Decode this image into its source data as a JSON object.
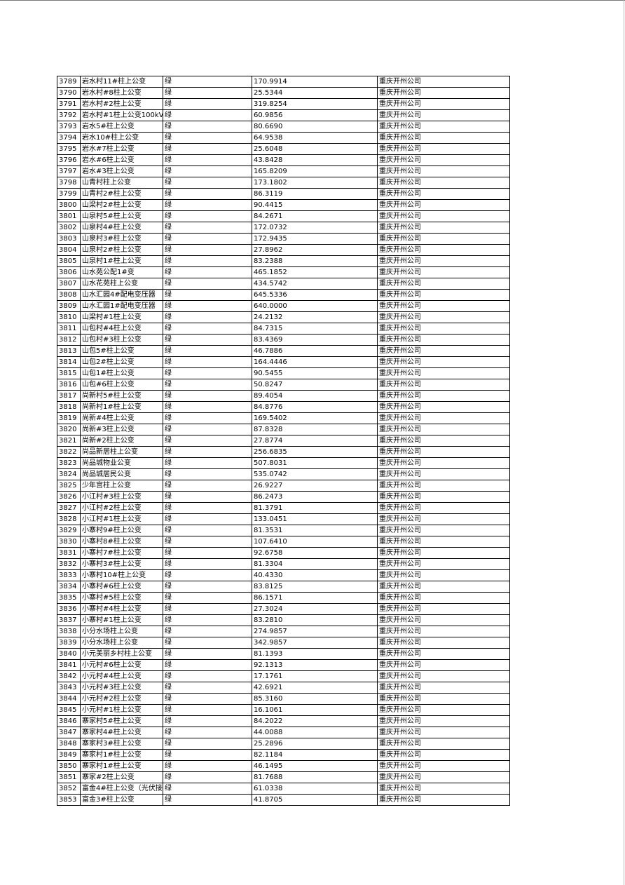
{
  "table": {
    "rows": [
      [
        "3789",
        "岩水村11#柱上公变",
        "绿",
        "170.9914",
        "重庆开州公司"
      ],
      [
        "3790",
        "岩水村#8柱上公变",
        "绿",
        "25.5344",
        "重庆开州公司"
      ],
      [
        "3791",
        "岩水村#2柱上公变",
        "绿",
        "319.8254",
        "重庆开州公司"
      ],
      [
        "3792",
        "岩水村#1柱上公变100kV",
        "绿",
        "60.9856",
        "重庆开州公司"
      ],
      [
        "3793",
        "岩水5#柱上公变",
        "绿",
        "80.6690",
        "重庆开州公司"
      ],
      [
        "3794",
        "岩水10#柱上公变",
        "绿",
        "64.9538",
        "重庆开州公司"
      ],
      [
        "3795",
        "岩水#7柱上公变",
        "绿",
        "25.6048",
        "重庆开州公司"
      ],
      [
        "3796",
        "岩水#6柱上公变",
        "绿",
        "43.8428",
        "重庆开州公司"
      ],
      [
        "3797",
        "岩水#3柱上公变",
        "绿",
        "165.8209",
        "重庆开州公司"
      ],
      [
        "3798",
        "山青村柱上公变",
        "绿",
        "173.1802",
        "重庆开州公司"
      ],
      [
        "3799",
        "山青村2#柱上公变",
        "绿",
        "86.3119",
        "重庆开州公司"
      ],
      [
        "3800",
        "山梁村2#柱上公变",
        "绿",
        "90.4415",
        "重庆开州公司"
      ],
      [
        "3801",
        "山泉村5#柱上公变",
        "绿",
        "84.2671",
        "重庆开州公司"
      ],
      [
        "3802",
        "山泉村4#柱上公变",
        "绿",
        "172.0732",
        "重庆开州公司"
      ],
      [
        "3803",
        "山泉村3#柱上公变",
        "绿",
        "172.9435",
        "重庆开州公司"
      ],
      [
        "3804",
        "山泉村2#柱上公变",
        "绿",
        "27.8962",
        "重庆开州公司"
      ],
      [
        "3805",
        "山泉村1#柱上公变",
        "绿",
        "83.2388",
        "重庆开州公司"
      ],
      [
        "3806",
        "山水苑公配1#变",
        "绿",
        "465.1852",
        "重庆开州公司"
      ],
      [
        "3807",
        "山水花苑柱上公变",
        "绿",
        "434.5742",
        "重庆开州公司"
      ],
      [
        "3808",
        "山水汇园4#配电变压器",
        "绿",
        "645.5336",
        "重庆开州公司"
      ],
      [
        "3809",
        "山水汇园1#配电变压器",
        "绿",
        "640.0000",
        "重庆开州公司"
      ],
      [
        "3810",
        "山梁村#1柱上公变",
        "绿",
        "24.2132",
        "重庆开州公司"
      ],
      [
        "3811",
        "山包村#4柱上公变",
        "绿",
        "84.7315",
        "重庆开州公司"
      ],
      [
        "3812",
        "山包村#3柱上公变",
        "绿",
        "83.4369",
        "重庆开州公司"
      ],
      [
        "3813",
        "山包5#柱上公变",
        "绿",
        "46.7886",
        "重庆开州公司"
      ],
      [
        "3814",
        "山包2#柱上公变",
        "绿",
        "164.4446",
        "重庆开州公司"
      ],
      [
        "3815",
        "山包1#柱上公变",
        "绿",
        "90.5455",
        "重庆开州公司"
      ],
      [
        "3816",
        "山包#6柱上公变",
        "绿",
        "50.8247",
        "重庆开州公司"
      ],
      [
        "3817",
        "尚新村5#柱上公变",
        "绿",
        "89.4054",
        "重庆开州公司"
      ],
      [
        "3818",
        "尚新村1#柱上公变",
        "绿",
        "84.8776",
        "重庆开州公司"
      ],
      [
        "3819",
        "尚新#4柱上公变",
        "绿",
        "169.5402",
        "重庆开州公司"
      ],
      [
        "3820",
        "尚新#3柱上公变",
        "绿",
        "87.8328",
        "重庆开州公司"
      ],
      [
        "3821",
        "尚新#2柱上公变",
        "绿",
        "27.8774",
        "重庆开州公司"
      ],
      [
        "3822",
        "尚品新居柱上公变",
        "绿",
        "256.6835",
        "重庆开州公司"
      ],
      [
        "3823",
        "尚品城物业公变",
        "绿",
        "507.8031",
        "重庆开州公司"
      ],
      [
        "3824",
        "尚品城居民公变",
        "绿",
        "535.0742",
        "重庆开州公司"
      ],
      [
        "3825",
        "少年宫柱上公变",
        "绿",
        "26.9227",
        "重庆开州公司"
      ],
      [
        "3826",
        "小江村#3柱上公变",
        "绿",
        "86.2473",
        "重庆开州公司"
      ],
      [
        "3827",
        "小江村#2柱上公变",
        "绿",
        "81.3791",
        "重庆开州公司"
      ],
      [
        "3828",
        "小江村#1柱上公变",
        "绿",
        "133.0451",
        "重庆开州公司"
      ],
      [
        "3829",
        "小寨村9#柱上公变",
        "绿",
        "81.3531",
        "重庆开州公司"
      ],
      [
        "3830",
        "小寨村8#柱上公变",
        "绿",
        "107.6410",
        "重庆开州公司"
      ],
      [
        "3831",
        "小寨村7#柱上公变",
        "绿",
        "92.6758",
        "重庆开州公司"
      ],
      [
        "3832",
        "小寨村3#柱上公变",
        "绿",
        "81.3304",
        "重庆开州公司"
      ],
      [
        "3833",
        "小寨村10#柱上公变",
        "绿",
        "40.4330",
        "重庆开州公司"
      ],
      [
        "3834",
        "小寨村#6柱上公变",
        "绿",
        "83.8125",
        "重庆开州公司"
      ],
      [
        "3835",
        "小寨村#5柱上公变",
        "绿",
        "86.1571",
        "重庆开州公司"
      ],
      [
        "3836",
        "小寨村#4柱上公变",
        "绿",
        "27.3024",
        "重庆开州公司"
      ],
      [
        "3837",
        "小寨村#1柱上公变",
        "绿",
        "83.2810",
        "重庆开州公司"
      ],
      [
        "3838",
        "小分水场柱上公变",
        "绿",
        "274.9857",
        "重庆开州公司"
      ],
      [
        "3839",
        "小分水场柱上公变",
        "绿",
        "342.9857",
        "重庆开州公司"
      ],
      [
        "3840",
        "小元美丽乡村柱上公变",
        "绿",
        "81.1393",
        "重庆开州公司"
      ],
      [
        "3841",
        "小元村#6柱上公变",
        "绿",
        "92.1313",
        "重庆开州公司"
      ],
      [
        "3842",
        "小元村#4柱上公变",
        "绿",
        "17.1761",
        "重庆开州公司"
      ],
      [
        "3843",
        "小元村#3柱上公变",
        "绿",
        "42.6921",
        "重庆开州公司"
      ],
      [
        "3844",
        "小元村#2柱上公变",
        "绿",
        "85.3160",
        "重庆开州公司"
      ],
      [
        "3845",
        "小元村#1柱上公变",
        "绿",
        "16.1061",
        "重庆开州公司"
      ],
      [
        "3846",
        "寨家村5#柱上公变",
        "绿",
        "84.2022",
        "重庆开州公司"
      ],
      [
        "3847",
        "寨家村4#柱上公变",
        "绿",
        "44.0088",
        "重庆开州公司"
      ],
      [
        "3848",
        "寨家村3#柱上公变",
        "绿",
        "25.2896",
        "重庆开州公司"
      ],
      [
        "3849",
        "寨家村1#柱上公变",
        "绿",
        "82.1184",
        "重庆开州公司"
      ],
      [
        "3850",
        "寨家村1#柱上公变",
        "绿",
        "46.1495",
        "重庆开州公司"
      ],
      [
        "3851",
        "寨家#2柱上公变",
        "绿",
        "81.7688",
        "重庆开州公司"
      ],
      [
        "3852",
        "富金4#柱上公变（光伏接",
        "绿",
        "61.0338",
        "重庆开州公司"
      ],
      [
        "3853",
        "富金3#柱上公变",
        "绿",
        "41.8705",
        "重庆开州公司"
      ]
    ]
  }
}
